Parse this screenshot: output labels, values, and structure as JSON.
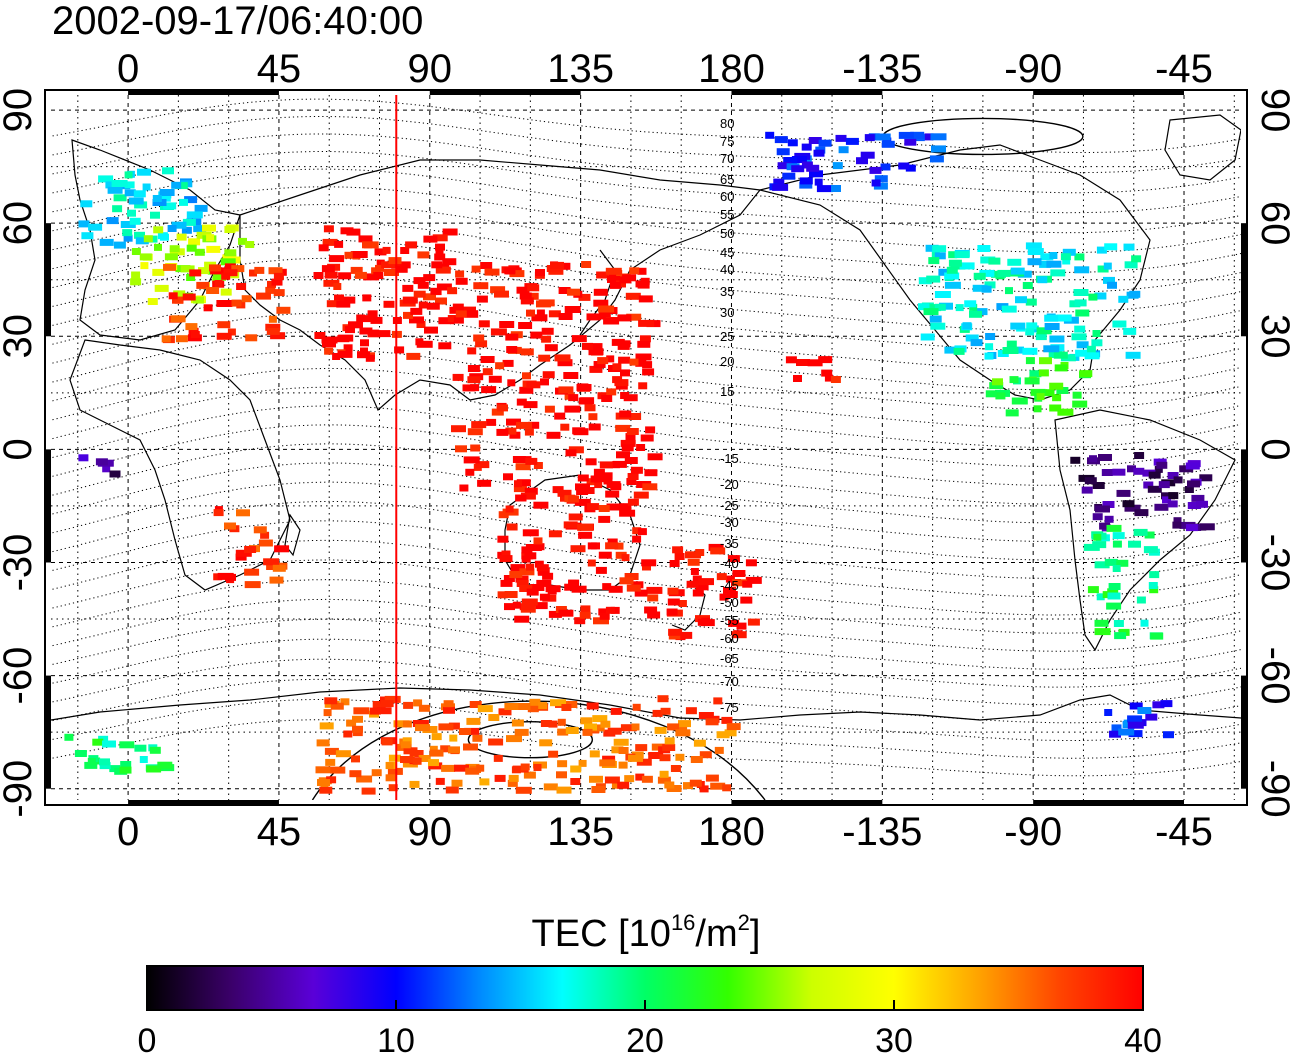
{
  "title": "2002-09-17/06:40:00",
  "map": {
    "lon_ticks": [
      "0",
      "45",
      "90",
      "135",
      "180",
      "-135",
      "-90",
      "-45"
    ],
    "lon_tick_values": [
      0,
      45,
      90,
      135,
      180,
      225,
      270,
      315
    ],
    "lat_ticks": [
      "90",
      "60",
      "30",
      "0",
      "-30",
      "-60",
      "-90"
    ],
    "lat_tick_values": [
      90,
      60,
      30,
      0,
      -30,
      -60,
      -90
    ],
    "lon_range": [
      -23,
      332
    ],
    "lat_range": [
      -93,
      94
    ],
    "grid": "dotted",
    "highlight_meridian_lon": 80,
    "highlight_meridian_color": "#ff0000",
    "contour_labels_north": [
      "80",
      "75",
      "70",
      "65",
      "60",
      "55",
      "50",
      "45",
      "40",
      "35",
      "30",
      "25",
      "20",
      "15"
    ],
    "contour_labels_south": [
      "-15",
      "-20",
      "-25",
      "-30",
      "-35",
      "-40",
      "-45",
      "-50",
      "-55",
      "-60",
      "-65",
      "-70",
      "-75"
    ]
  },
  "colorbar": {
    "label_prefix": "TEC  [10",
    "label_exp1": "16",
    "label_mid": "/m",
    "label_exp2": "2",
    "label_suffix": "]",
    "ticks": [
      "0",
      "10",
      "20",
      "30",
      "40"
    ],
    "tick_values": [
      0,
      10,
      20,
      30,
      40
    ],
    "range": [
      0,
      40
    ],
    "colormap": [
      "#000000",
      "#3a0068",
      "#5a00d8",
      "#0000ff",
      "#0088ff",
      "#00ffff",
      "#00ff66",
      "#33ff00",
      "#ccff00",
      "#ffff00",
      "#ffa500",
      "#ff4400",
      "#ff0000"
    ]
  },
  "chart_data": {
    "type": "heatmap",
    "title": "2002-09-17/06:40:00",
    "value_label": "TEC [10^16/m^2]",
    "value_range": [
      0,
      40
    ],
    "regions": [
      {
        "lon": [
          -15,
          20
        ],
        "lat": [
          55,
          75
        ],
        "tec": 16
      },
      {
        "lon": [
          0,
          35
        ],
        "lat": [
          40,
          60
        ],
        "tec": 27
      },
      {
        "lon": [
          10,
          45
        ],
        "lat": [
          30,
          50
        ],
        "tec": 38
      },
      {
        "lon": [
          55,
          95
        ],
        "lat": [
          25,
          60
        ],
        "tec": 40
      },
      {
        "lon": [
          95,
          155
        ],
        "lat": [
          -10,
          50
        ],
        "tec": 40
      },
      {
        "lon": [
          110,
          155
        ],
        "lat": [
          -45,
          -10
        ],
        "tec": 40
      },
      {
        "lon": [
          160,
          185
        ],
        "lat": [
          -50,
          -25
        ],
        "tec": 40
      },
      {
        "lon": [
          190,
          240
        ],
        "lat": [
          70,
          85
        ],
        "tec": 11
      },
      {
        "lon": [
          235,
          300
        ],
        "lat": [
          25,
          55
        ],
        "tec": 17
      },
      {
        "lon": [
          255,
          285
        ],
        "lat": [
          10,
          25
        ],
        "tec": 22
      },
      {
        "lon": [
          280,
          320
        ],
        "lat": [
          -20,
          0
        ],
        "tec": 4
      },
      {
        "lon": [
          285,
          305
        ],
        "lat": [
          -50,
          -20
        ],
        "tec": 20
      },
      {
        "lon": [
          25,
          45
        ],
        "lat": [
          -35,
          -15
        ],
        "tec": 38
      },
      {
        "lon": [
          -15,
          -5
        ],
        "lat": [
          -10,
          0
        ],
        "tec": 5
      },
      {
        "lon": [
          55,
          180
        ],
        "lat": [
          -90,
          -65
        ],
        "tec": 36
      },
      {
        "lon": [
          -20,
          10
        ],
        "lat": [
          -85,
          -75
        ],
        "tec": 20
      },
      {
        "lon": [
          290,
          310
        ],
        "lat": [
          -75,
          -65
        ],
        "tec": 11
      },
      {
        "lon": [
          195,
          210
        ],
        "lat": [
          18,
          25
        ],
        "tec": 40
      }
    ]
  }
}
